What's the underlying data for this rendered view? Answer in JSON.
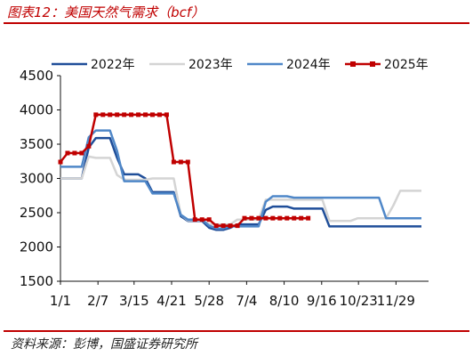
{
  "header": {
    "title": "图表12：美国天然气需求（bcf）"
  },
  "footer": {
    "source": "资料来源：彭博，国盛证券研究所"
  },
  "chart_data": {
    "type": "line",
    "title": "图表12：美国天然气需求（bcf）",
    "xlabel": "",
    "ylabel": "",
    "ylim": [
      1500,
      4500
    ],
    "yticks": [
      "1500",
      "2000",
      "2500",
      "3000",
      "3500",
      "4000",
      "4500"
    ],
    "xlim": [
      0,
      52
    ],
    "xticks": [
      {
        "label": "1/1",
        "week": 0
      },
      {
        "label": "2/7",
        "week": 5.3
      },
      {
        "label": "3/15",
        "week": 10.4
      },
      {
        "label": "4/21",
        "week": 15.7
      },
      {
        "label": "5/28",
        "week": 21
      },
      {
        "label": "7/4",
        "week": 26.3
      },
      {
        "label": "8/10",
        "week": 31.6
      },
      {
        "label": "9/16",
        "week": 36.9
      },
      {
        "label": "10/23",
        "week": 42.1
      },
      {
        "label": "11/29",
        "week": 47.4
      }
    ],
    "grid": false,
    "legend_position": "top",
    "series": [
      {
        "name": "2022年",
        "color": "#1f4e99",
        "marker": "none",
        "x": [
          0,
          1,
          3,
          4,
          5,
          6,
          7,
          8,
          9,
          10,
          11,
          12,
          13,
          14,
          15,
          16,
          17,
          18,
          19,
          20,
          21,
          22,
          23,
          24,
          25,
          26,
          27,
          28,
          29,
          30,
          31,
          32,
          33,
          34,
          35,
          36,
          37,
          38,
          39,
          40,
          41,
          42,
          43,
          44,
          45,
          46,
          47,
          48,
          49,
          50,
          51
        ],
        "y": [
          3000,
          3000,
          3000,
          3450,
          3590,
          3590,
          3590,
          3300,
          3060,
          3060,
          3060,
          3000,
          2800,
          2800,
          2800,
          2800,
          2450,
          2380,
          2380,
          2380,
          2280,
          2250,
          2250,
          2280,
          2330,
          2330,
          2330,
          2330,
          2540,
          2590,
          2590,
          2590,
          2560,
          2560,
          2560,
          2560,
          2560,
          2300,
          2300,
          2300,
          2300,
          2300,
          2300,
          2300,
          2300,
          2300,
          2300,
          2300,
          2300,
          2300,
          2300
        ]
      },
      {
        "name": "2023年",
        "color": "#d4d4d4",
        "marker": "none",
        "x": [
          0,
          1,
          3,
          4,
          5,
          6,
          7,
          8,
          9,
          10,
          11,
          12,
          13,
          14,
          15,
          16,
          17,
          18,
          19,
          20,
          21,
          22,
          23,
          24,
          25,
          26,
          27,
          28,
          29,
          30,
          31,
          32,
          33,
          34,
          35,
          36,
          37,
          38,
          39,
          40,
          41,
          42,
          43,
          44,
          45,
          46,
          47,
          48,
          49,
          50,
          51
        ],
        "y": [
          3000,
          3000,
          3000,
          3320,
          3300,
          3300,
          3300,
          3050,
          2980,
          2980,
          2980,
          2980,
          3000,
          3000,
          3000,
          3000,
          2470,
          2390,
          2390,
          2390,
          2330,
          2330,
          2330,
          2330,
          2400,
          2400,
          2400,
          2400,
          2690,
          2690,
          2690,
          2690,
          2690,
          2690,
          2690,
          2690,
          2690,
          2380,
          2380,
          2380,
          2380,
          2420,
          2420,
          2420,
          2420,
          2420,
          2600,
          2820,
          2820,
          2820,
          2820
        ]
      },
      {
        "name": "2024年",
        "color": "#4f87c8",
        "marker": "none",
        "x": [
          0,
          1,
          3,
          4,
          5,
          6,
          7,
          8,
          9,
          10,
          11,
          12,
          13,
          14,
          15,
          16,
          17,
          18,
          19,
          20,
          21,
          22,
          23,
          24,
          25,
          26,
          27,
          28,
          29,
          30,
          31,
          32,
          33,
          34,
          35,
          36,
          37,
          38,
          39,
          40,
          41,
          42,
          43,
          44,
          45,
          46,
          47,
          48,
          49,
          50,
          51
        ],
        "y": [
          3170,
          3170,
          3170,
          3600,
          3700,
          3700,
          3700,
          3400,
          2960,
          2960,
          2960,
          2960,
          2780,
          2780,
          2780,
          2780,
          2470,
          2400,
          2400,
          2400,
          2310,
          2270,
          2270,
          2300,
          2300,
          2300,
          2300,
          2300,
          2660,
          2740,
          2740,
          2740,
          2720,
          2720,
          2720,
          2720,
          2720,
          2720,
          2720,
          2720,
          2720,
          2720,
          2720,
          2720,
          2720,
          2420,
          2420,
          2420,
          2420,
          2420,
          2420
        ]
      },
      {
        "name": "2025年",
        "color": "#c00000",
        "marker": "square",
        "x": [
          0,
          1,
          2,
          3,
          4,
          5,
          6,
          7,
          8,
          9,
          10,
          11,
          12,
          13,
          14,
          15,
          16,
          17,
          18,
          19,
          20,
          21,
          22,
          23,
          24,
          25,
          26,
          27,
          28,
          29,
          30,
          31,
          32,
          33,
          34,
          35
        ],
        "y": [
          3240,
          3370,
          3370,
          3370,
          3470,
          3930,
          3930,
          3930,
          3930,
          3930,
          3930,
          3930,
          3930,
          3930,
          3930,
          3930,
          3240,
          3240,
          3240,
          2400,
          2400,
          2400,
          2310,
          2310,
          2310,
          2310,
          2420,
          2420,
          2420,
          2420,
          2420,
          2420,
          2420,
          2420,
          2420,
          2420
        ]
      }
    ]
  }
}
